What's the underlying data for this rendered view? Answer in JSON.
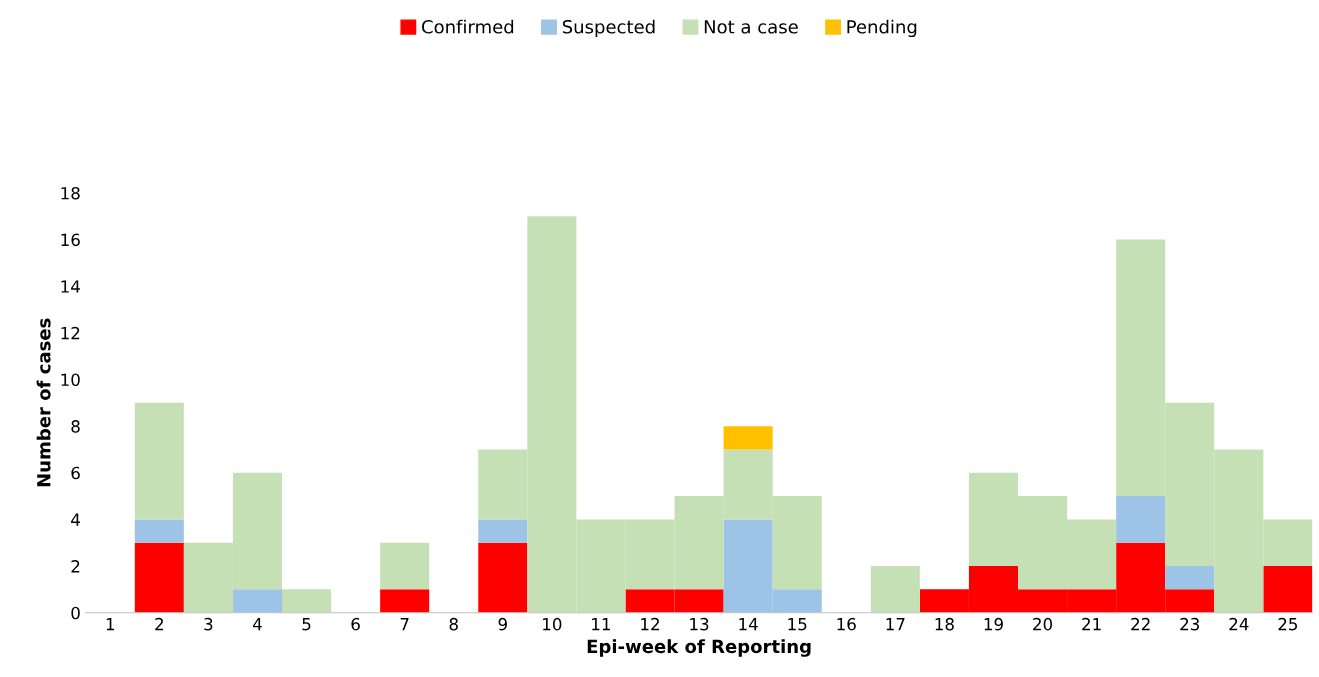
{
  "chart_data": {
    "type": "bar",
    "stacked": true,
    "xlabel": "Epi-week of Reporting",
    "ylabel": "Number of cases",
    "categories": [
      "1",
      "2",
      "3",
      "4",
      "5",
      "6",
      "7",
      "8",
      "9",
      "10",
      "11",
      "12",
      "13",
      "14",
      "15",
      "16",
      "17",
      "18",
      "19",
      "20",
      "21",
      "22",
      "23",
      "24",
      "25"
    ],
    "series": [
      {
        "name": "Confirmed",
        "color": "#ff0000",
        "values": [
          0,
          3,
          0,
          0,
          0,
          0,
          1,
          0,
          3,
          0,
          0,
          1,
          1,
          0,
          0,
          0,
          0,
          1,
          2,
          1,
          1,
          3,
          1,
          0,
          2
        ]
      },
      {
        "name": "Suspected",
        "color": "#9dc3e6",
        "values": [
          0,
          1,
          0,
          1,
          0,
          0,
          0,
          0,
          1,
          0,
          0,
          0,
          0,
          4,
          1,
          0,
          0,
          0,
          0,
          0,
          0,
          2,
          1,
          0,
          0
        ]
      },
      {
        "name": "Not a case",
        "color": "#c5e0b4",
        "values": [
          0,
          5,
          3,
          5,
          1,
          0,
          2,
          0,
          3,
          17,
          4,
          3,
          4,
          3,
          4,
          0,
          2,
          0,
          4,
          4,
          3,
          11,
          7,
          7,
          2
        ]
      },
      {
        "name": "Pending",
        "color": "#ffc000",
        "values": [
          0,
          0,
          0,
          0,
          0,
          0,
          0,
          0,
          0,
          0,
          0,
          0,
          0,
          1,
          0,
          0,
          0,
          0,
          0,
          0,
          0,
          0,
          0,
          0,
          0
        ]
      }
    ],
    "ylim": [
      0,
      18
    ],
    "yticks": [
      0,
      2,
      4,
      6,
      8,
      10,
      12,
      14,
      16,
      18
    ],
    "grid": false,
    "legend": "top"
  }
}
